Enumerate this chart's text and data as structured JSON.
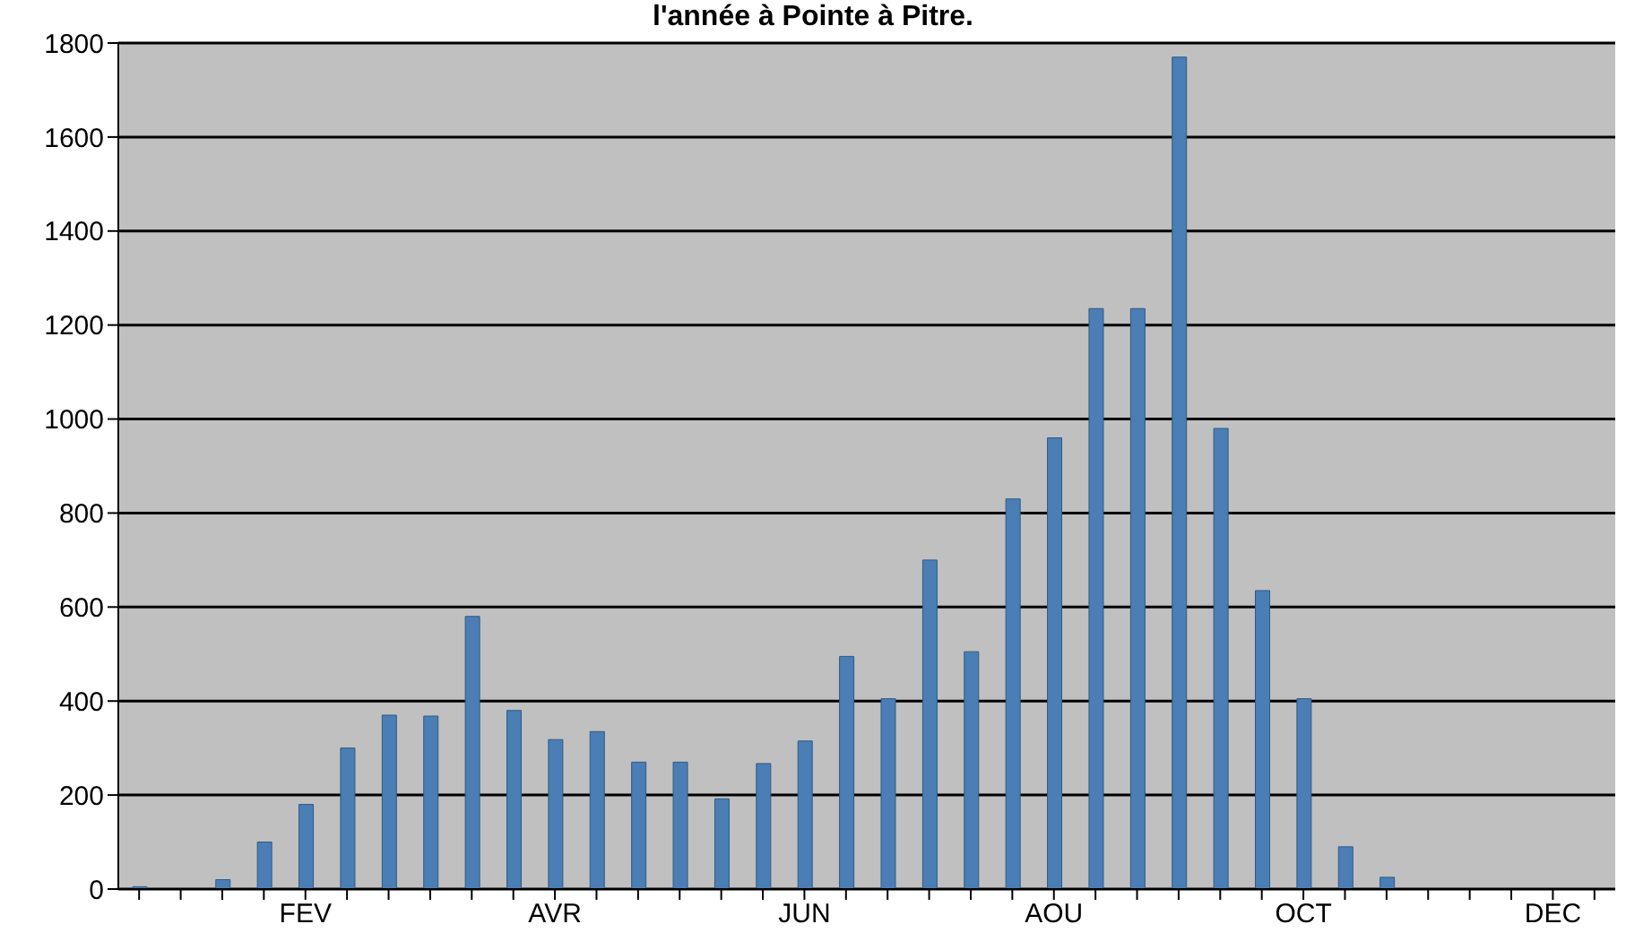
{
  "chart_data": {
    "type": "bar",
    "title": "l'année à Pointe à Pitre.",
    "categories": [
      null,
      null,
      null,
      null,
      "FEV",
      null,
      null,
      null,
      null,
      null,
      "AVR",
      null,
      null,
      null,
      null,
      null,
      "JUN",
      null,
      null,
      null,
      null,
      null,
      "AOU",
      null,
      null,
      null,
      null,
      null,
      "OCT",
      null,
      null,
      null,
      null,
      null,
      "DEC",
      null
    ],
    "values": [
      5,
      null,
      20,
      100,
      180,
      300,
      370,
      368,
      580,
      380,
      318,
      335,
      270,
      270,
      192,
      267,
      315,
      495,
      405,
      700,
      505,
      830,
      960,
      1235,
      1235,
      1770,
      980,
      635,
      405,
      90,
      25,
      null,
      null,
      null,
      null,
      null
    ],
    "color": "#4a7eb4",
    "ylim": [
      0,
      1800
    ],
    "yticks": [
      0,
      200,
      400,
      600,
      800,
      1000,
      1200,
      1400,
      1600,
      1800
    ],
    "grid": "y"
  }
}
